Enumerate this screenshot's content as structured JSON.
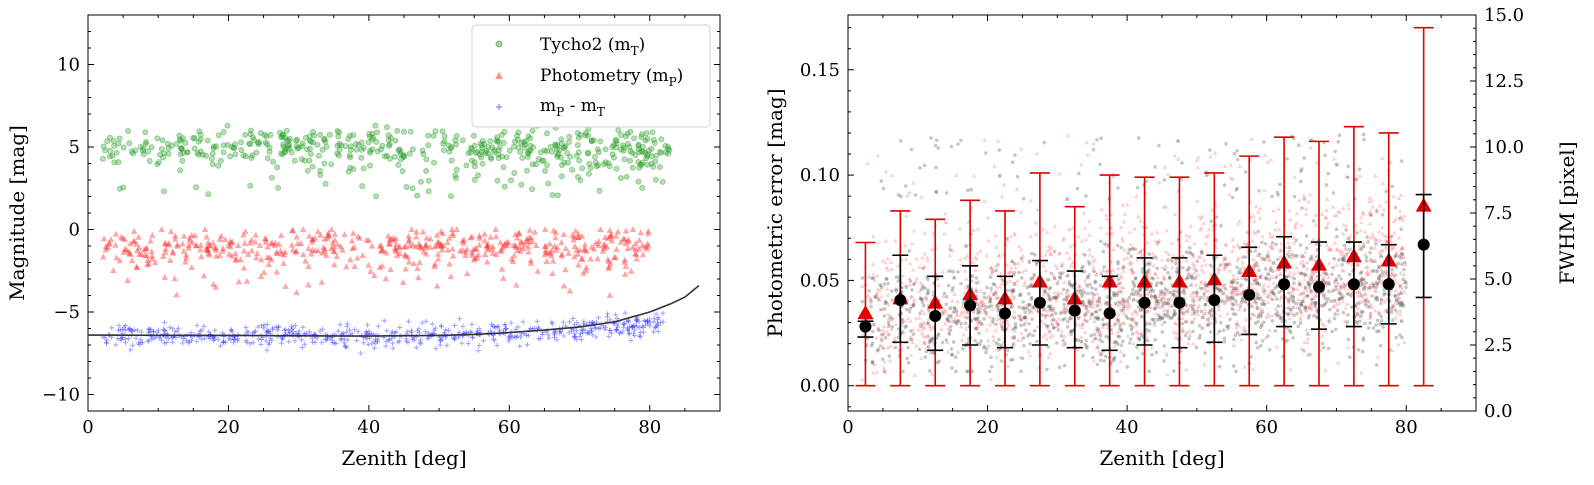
{
  "chart_data": [
    {
      "type": "scatter",
      "xlabel": "Zenith [deg]",
      "ylabel": "Magnitude [mag]",
      "xlim": [
        0,
        90
      ],
      "ylim": [
        -11,
        13
      ],
      "xticks": [
        "0",
        "20",
        "40",
        "60",
        "80"
      ],
      "yticks": [
        "10",
        "5",
        "0",
        "−5",
        "−10"
      ],
      "legend_position": "top-right",
      "series": [
        {
          "name": "Tycho2 (m_T)",
          "legend_main": "Tycho2 (m",
          "legend_sub": "T",
          "legend_tail": ")",
          "marker": "circle",
          "color": "#2ca02c",
          "x_range": [
            2,
            83
          ],
          "y_band": [
            2,
            6
          ],
          "y_mean": 5
        },
        {
          "name": "Photometry (m_P)",
          "legend_main": "Photometry (m",
          "legend_sub": "P",
          "legend_tail": ")",
          "marker": "triangle",
          "color": "#ff2020",
          "x_range": [
            2,
            80
          ],
          "y_band": [
            -4,
            -0.3
          ],
          "y_mean": -1.1
        },
        {
          "name": "m_P - m_T",
          "legend_main": "m",
          "legend_sub": "P",
          "legend_mid": " - m",
          "legend_sub2": "T",
          "marker": "plus",
          "color": "#3030ff",
          "x_range": [
            2,
            82
          ],
          "y_band": [
            -7.6,
            -5.2
          ],
          "y_mean": -6.3
        }
      ],
      "fit_curve": {
        "color": "#333333",
        "x": [
          0,
          10,
          20,
          30,
          40,
          50,
          55,
          60,
          65,
          70,
          75,
          80,
          83,
          85,
          87
        ],
        "y": [
          -6.4,
          -6.41,
          -6.42,
          -6.44,
          -6.46,
          -6.42,
          -6.36,
          -6.25,
          -6.1,
          -5.9,
          -5.6,
          -5.0,
          -4.5,
          -4.1,
          -3.4
        ]
      }
    },
    {
      "type": "scatter",
      "xlabel": "Zenith [deg]",
      "ylabel": "Photometric error [mag]",
      "y2label": "FWHM [pixel]",
      "xlim": [
        0,
        90
      ],
      "ylim": [
        -0.012,
        0.176
      ],
      "y2lim": [
        0,
        15
      ],
      "xticks": [
        "0",
        "20",
        "40",
        "60",
        "80"
      ],
      "yticks": [
        "0.00",
        "0.05",
        "0.10",
        "0.15"
      ],
      "y2ticks": [
        "0.0",
        "2.5",
        "5.0",
        "7.5",
        "10.0",
        "12.5",
        "15.0"
      ],
      "bins_x": [
        2.5,
        7.5,
        12.5,
        17.5,
        22.5,
        27.5,
        32.5,
        37.5,
        42.5,
        47.5,
        52.5,
        57.5,
        62.5,
        67.5,
        72.5,
        77.5,
        82.5
      ],
      "error_mean": [
        0.034,
        0.041,
        0.039,
        0.043,
        0.041,
        0.049,
        0.041,
        0.049,
        0.049,
        0.049,
        0.05,
        0.054,
        0.058,
        0.057,
        0.061,
        0.059,
        0.085
      ],
      "error_hi": [
        0.068,
        0.083,
        0.079,
        0.088,
        0.083,
        0.101,
        0.085,
        0.1,
        0.099,
        0.099,
        0.101,
        0.109,
        0.118,
        0.116,
        0.123,
        0.12,
        0.17
      ],
      "error_lo": [
        0.0,
        0.0,
        0.0,
        0.0,
        0.0,
        0.0,
        0.0,
        0.0,
        0.0,
        0.0,
        0.0,
        0.0,
        0.0,
        0.0,
        0.0,
        0.0,
        0.0
      ],
      "fwhm_mean": [
        3.2,
        4.2,
        3.6,
        4.0,
        3.7,
        4.1,
        3.8,
        3.7,
        4.1,
        4.1,
        4.2,
        4.4,
        4.8,
        4.7,
        4.8,
        4.8,
        6.3
      ],
      "fwhm_hi": [
        3.4,
        5.9,
        5.1,
        5.5,
        5.1,
        5.7,
        5.3,
        5.1,
        5.8,
        5.8,
        5.9,
        6.2,
        6.6,
        6.4,
        6.4,
        6.3,
        8.2
      ],
      "fwhm_lo": [
        2.8,
        2.6,
        2.3,
        2.5,
        2.4,
        2.5,
        2.4,
        2.3,
        2.5,
        2.4,
        2.6,
        2.9,
        3.2,
        3.1,
        3.2,
        3.3,
        4.3
      ],
      "colors": {
        "error": "#e00000",
        "error_scatter": "#ff6060",
        "fwhm": "#000000",
        "fwhm_scatter": "#444444"
      }
    }
  ]
}
